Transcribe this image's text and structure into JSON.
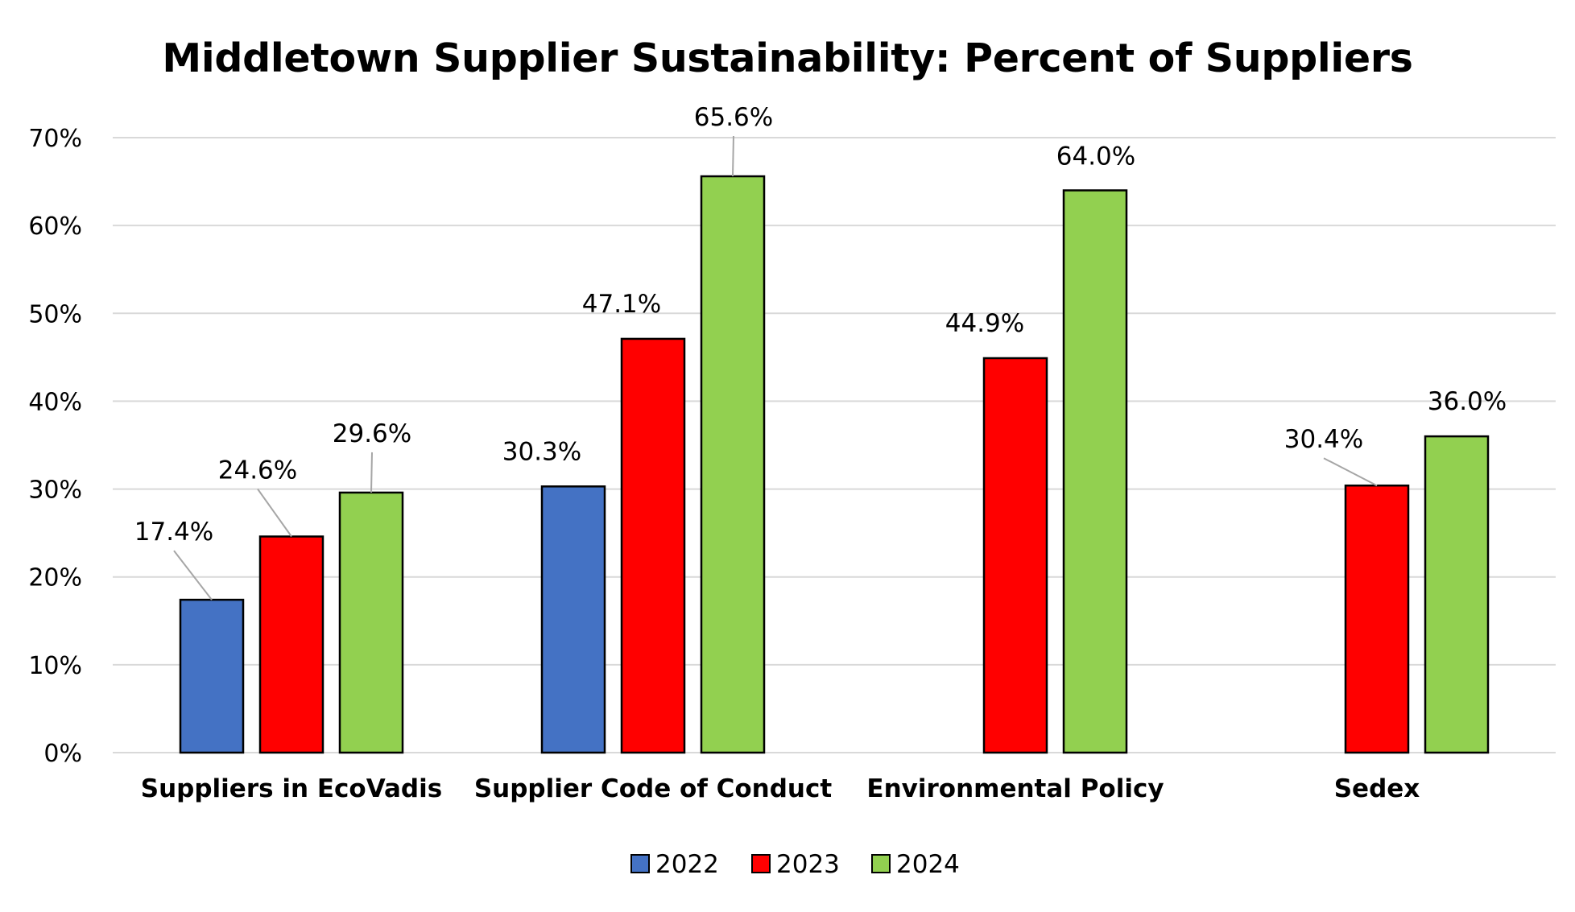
{
  "chart_data": {
    "type": "bar",
    "title": "Middletown Supplier Sustainability: Percent of Suppliers",
    "xlabel": "",
    "ylabel": "",
    "categories": [
      "Suppliers in EcoVadis",
      "Supplier Code of Conduct",
      "Environmental Policy",
      "Sedex"
    ],
    "series": [
      {
        "name": "2022",
        "color": "#4472C4",
        "values": [
          17.4,
          30.3,
          null,
          null
        ]
      },
      {
        "name": "2023",
        "color": "#FF0000",
        "values": [
          24.6,
          47.1,
          44.9,
          30.4
        ]
      },
      {
        "name": "2024",
        "color": "#92D050",
        "values": [
          29.6,
          65.6,
          64.0,
          36.0
        ]
      }
    ],
    "data_labels": [
      [
        "17.4%",
        "30.3%",
        null,
        null
      ],
      [
        "24.6%",
        "47.1%",
        "44.9%",
        "30.4%"
      ],
      [
        "29.6%",
        "65.6%",
        "64.0%",
        "36.0%"
      ]
    ],
    "ylim": [
      0,
      70
    ],
    "yticks": [
      0,
      10,
      20,
      30,
      40,
      50,
      60,
      70
    ],
    "ytick_labels": [
      "0%",
      "10%",
      "20%",
      "30%",
      "40%",
      "50%",
      "60%",
      "70%"
    ],
    "grid": true,
    "legend_position": "bottom-center"
  }
}
